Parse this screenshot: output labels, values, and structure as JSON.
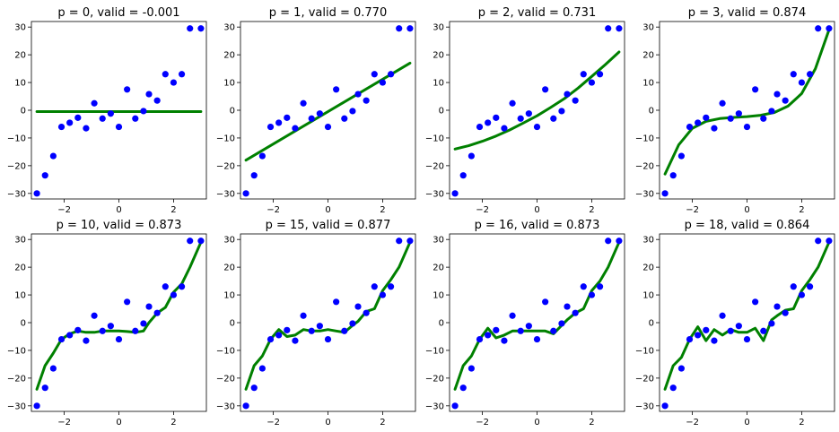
{
  "chart_data": [
    {
      "type": "scatter",
      "title": "p = 0, valid = -0.001",
      "xlabel": "",
      "ylabel": "",
      "xlim": [
        -3.2,
        3.2
      ],
      "ylim": [
        -32,
        32
      ],
      "xticks": [
        -2,
        0,
        2
      ],
      "yticks": [
        -30,
        -20,
        -10,
        0,
        10,
        20,
        30
      ],
      "grid": false,
      "legend": "none",
      "series": [
        {
          "kind": "points",
          "color": "#0000ff",
          "x": [
            -3.0,
            -2.7,
            -2.4,
            -2.1,
            -1.8,
            -1.5,
            -1.2,
            -0.9,
            -0.6,
            -0.3,
            0.0,
            0.3,
            0.6,
            0.9,
            1.1,
            1.4,
            1.7,
            2.0,
            2.3,
            2.6,
            3.0
          ],
          "y": [
            -30.0,
            -23.5,
            -16.5,
            -6.0,
            -4.5,
            -2.7,
            -6.5,
            2.5,
            -3.0,
            -1.2,
            -6.0,
            7.5,
            -3.0,
            -0.3,
            5.8,
            3.5,
            13.0,
            10.0,
            13.0,
            29.5,
            29.5
          ]
        },
        {
          "kind": "fit",
          "color": "#008000",
          "x": [
            -3.0,
            3.0
          ],
          "y": [
            -0.5,
            -0.5
          ]
        }
      ]
    },
    {
      "type": "scatter",
      "title": "p = 1, valid = 0.770",
      "xlabel": "",
      "ylabel": "",
      "xlim": [
        -3.2,
        3.2
      ],
      "ylim": [
        -32,
        32
      ],
      "xticks": [
        -2,
        0,
        2
      ],
      "yticks": [
        -30,
        -20,
        -10,
        0,
        10,
        20,
        30
      ],
      "grid": false,
      "legend": "none",
      "series": [
        {
          "kind": "points",
          "color": "#0000ff",
          "x": [
            -3.0,
            -2.7,
            -2.4,
            -2.1,
            -1.8,
            -1.5,
            -1.2,
            -0.9,
            -0.6,
            -0.3,
            0.0,
            0.3,
            0.6,
            0.9,
            1.1,
            1.4,
            1.7,
            2.0,
            2.3,
            2.6,
            3.0
          ],
          "y": [
            -30.0,
            -23.5,
            -16.5,
            -6.0,
            -4.5,
            -2.7,
            -6.5,
            2.5,
            -3.0,
            -1.2,
            -6.0,
            7.5,
            -3.0,
            -0.3,
            5.8,
            3.5,
            13.0,
            10.0,
            13.0,
            29.5,
            29.5
          ]
        },
        {
          "kind": "fit",
          "color": "#008000",
          "x": [
            -3.0,
            3.0
          ],
          "y": [
            -18.0,
            17.0
          ]
        }
      ]
    },
    {
      "type": "scatter",
      "title": "p = 2, valid = 0.731",
      "xlabel": "",
      "ylabel": "",
      "xlim": [
        -3.2,
        3.2
      ],
      "ylim": [
        -32,
        32
      ],
      "xticks": [
        -2,
        0,
        2
      ],
      "yticks": [
        -30,
        -20,
        -10,
        0,
        10,
        20,
        30
      ],
      "grid": false,
      "legend": "none",
      "series": [
        {
          "kind": "points",
          "color": "#0000ff",
          "x": [
            -3.0,
            -2.7,
            -2.4,
            -2.1,
            -1.8,
            -1.5,
            -1.2,
            -0.9,
            -0.6,
            -0.3,
            0.0,
            0.3,
            0.6,
            0.9,
            1.1,
            1.4,
            1.7,
            2.0,
            2.3,
            2.6,
            3.0
          ],
          "y": [
            -30.0,
            -23.5,
            -16.5,
            -6.0,
            -4.5,
            -2.7,
            -6.5,
            2.5,
            -3.0,
            -1.2,
            -6.0,
            7.5,
            -3.0,
            -0.3,
            5.8,
            3.5,
            13.0,
            10.0,
            13.0,
            29.5,
            29.5
          ]
        },
        {
          "kind": "fit",
          "color": "#008000",
          "x": [
            -3.0,
            -2.5,
            -2.0,
            -1.5,
            -1.0,
            -0.5,
            0.0,
            0.5,
            1.0,
            1.5,
            2.0,
            2.5,
            3.0
          ],
          "y": [
            -14.0,
            -12.8,
            -11.2,
            -9.3,
            -7.1,
            -4.6,
            -2.0,
            1.0,
            4.2,
            8.0,
            12.2,
            16.5,
            21.0
          ]
        }
      ]
    },
    {
      "type": "scatter",
      "title": "p = 3, valid = 0.874",
      "xlabel": "",
      "ylabel": "",
      "xlim": [
        -3.2,
        3.2
      ],
      "ylim": [
        -32,
        32
      ],
      "xticks": [
        -2,
        0,
        2
      ],
      "yticks": [
        -30,
        -20,
        -10,
        0,
        10,
        20,
        30
      ],
      "grid": false,
      "legend": "none",
      "series": [
        {
          "kind": "points",
          "color": "#0000ff",
          "x": [
            -3.0,
            -2.7,
            -2.4,
            -2.1,
            -1.8,
            -1.5,
            -1.2,
            -0.9,
            -0.6,
            -0.3,
            0.0,
            0.3,
            0.6,
            0.9,
            1.1,
            1.4,
            1.7,
            2.0,
            2.3,
            2.6,
            3.0
          ],
          "y": [
            -30.0,
            -23.5,
            -16.5,
            -6.0,
            -4.5,
            -2.7,
            -6.5,
            2.5,
            -3.0,
            -1.2,
            -6.0,
            7.5,
            -3.0,
            -0.3,
            5.8,
            3.5,
            13.0,
            10.0,
            13.0,
            29.5,
            29.5
          ]
        },
        {
          "kind": "fit",
          "color": "#008000",
          "x": [
            -3.0,
            -2.5,
            -2.0,
            -1.5,
            -1.0,
            -0.5,
            0.0,
            0.5,
            1.0,
            1.5,
            2.0,
            2.5,
            3.0
          ],
          "y": [
            -23.0,
            -12.5,
            -6.5,
            -4.0,
            -3.0,
            -2.6,
            -2.3,
            -1.8,
            -0.8,
            1.5,
            6.0,
            15.0,
            29.0
          ]
        }
      ]
    },
    {
      "type": "scatter",
      "title": "p = 10, valid = 0.873",
      "xlabel": "",
      "ylabel": "",
      "xlim": [
        -3.2,
        3.2
      ],
      "ylim": [
        -32,
        32
      ],
      "xticks": [
        -2,
        0,
        2
      ],
      "yticks": [
        -30,
        -20,
        -10,
        0,
        10,
        20,
        30
      ],
      "grid": false,
      "legend": "none",
      "series": [
        {
          "kind": "points",
          "color": "#0000ff",
          "x": [
            -3.0,
            -2.7,
            -2.4,
            -2.1,
            -1.8,
            -1.5,
            -1.2,
            -0.9,
            -0.6,
            -0.3,
            0.0,
            0.3,
            0.6,
            0.9,
            1.1,
            1.4,
            1.7,
            2.0,
            2.3,
            2.6,
            3.0
          ],
          "y": [
            -30.0,
            -23.5,
            -16.5,
            -6.0,
            -4.5,
            -2.7,
            -6.5,
            2.5,
            -3.0,
            -1.2,
            -6.0,
            7.5,
            -3.0,
            -0.3,
            5.8,
            3.5,
            13.0,
            10.0,
            13.0,
            29.5,
            29.5
          ]
        },
        {
          "kind": "fit",
          "color": "#008000",
          "x": [
            -3.0,
            -2.7,
            -2.4,
            -2.1,
            -1.8,
            -1.5,
            -1.2,
            -0.9,
            -0.6,
            -0.3,
            0.0,
            0.3,
            0.6,
            0.9,
            1.1,
            1.4,
            1.7,
            2.0,
            2.3,
            2.6,
            3.0
          ],
          "y": [
            -24.0,
            -15.5,
            -11.0,
            -6.0,
            -4.0,
            -3.0,
            -3.5,
            -3.5,
            -3.0,
            -3.0,
            -3.0,
            -3.2,
            -3.5,
            -3.0,
            0.0,
            3.5,
            5.5,
            11.0,
            14.0,
            20.0,
            29.0
          ]
        }
      ]
    },
    {
      "type": "scatter",
      "title": "p = 15, valid = 0.877",
      "xlabel": "",
      "ylabel": "",
      "xlim": [
        -3.2,
        3.2
      ],
      "ylim": [
        -32,
        32
      ],
      "xticks": [
        -2,
        0,
        2
      ],
      "yticks": [
        -30,
        -20,
        -10,
        0,
        10,
        20,
        30
      ],
      "grid": false,
      "legend": "none",
      "series": [
        {
          "kind": "points",
          "color": "#0000ff",
          "x": [
            -3.0,
            -2.7,
            -2.4,
            -2.1,
            -1.8,
            -1.5,
            -1.2,
            -0.9,
            -0.6,
            -0.3,
            0.0,
            0.3,
            0.6,
            0.9,
            1.1,
            1.4,
            1.7,
            2.0,
            2.3,
            2.6,
            3.0
          ],
          "y": [
            -30.0,
            -23.5,
            -16.5,
            -6.0,
            -4.5,
            -2.7,
            -6.5,
            2.5,
            -3.0,
            -1.2,
            -6.0,
            7.5,
            -3.0,
            -0.3,
            5.8,
            3.5,
            13.0,
            10.0,
            13.0,
            29.5,
            29.5
          ]
        },
        {
          "kind": "fit",
          "color": "#008000",
          "x": [
            -3.0,
            -2.7,
            -2.4,
            -2.1,
            -1.8,
            -1.5,
            -1.2,
            -0.9,
            -0.6,
            -0.3,
            0.0,
            0.3,
            0.6,
            0.9,
            1.1,
            1.4,
            1.7,
            2.0,
            2.3,
            2.6,
            3.0
          ],
          "y": [
            -24.0,
            -15.5,
            -12.0,
            -6.0,
            -2.5,
            -5.0,
            -4.5,
            -2.5,
            -3.0,
            -3.0,
            -2.5,
            -3.0,
            -3.5,
            -1.0,
            0.5,
            4.0,
            5.0,
            11.5,
            15.5,
            20.0,
            29.0
          ]
        }
      ]
    },
    {
      "type": "scatter",
      "title": "p = 16, valid = 0.873",
      "xlabel": "",
      "ylabel": "",
      "xlim": [
        -3.2,
        3.2
      ],
      "ylim": [
        -32,
        32
      ],
      "xticks": [
        -2,
        0,
        2
      ],
      "yticks": [
        -30,
        -20,
        -10,
        0,
        10,
        20,
        30
      ],
      "grid": false,
      "legend": "none",
      "series": [
        {
          "kind": "points",
          "color": "#0000ff",
          "x": [
            -3.0,
            -2.7,
            -2.4,
            -2.1,
            -1.8,
            -1.5,
            -1.2,
            -0.9,
            -0.6,
            -0.3,
            0.0,
            0.3,
            0.6,
            0.9,
            1.1,
            1.4,
            1.7,
            2.0,
            2.3,
            2.6,
            3.0
          ],
          "y": [
            -30.0,
            -23.5,
            -16.5,
            -6.0,
            -4.5,
            -2.7,
            -6.5,
            2.5,
            -3.0,
            -1.2,
            -6.0,
            7.5,
            -3.0,
            -0.3,
            5.8,
            3.5,
            13.0,
            10.0,
            13.0,
            29.5,
            29.5
          ]
        },
        {
          "kind": "fit",
          "color": "#008000",
          "x": [
            -3.0,
            -2.7,
            -2.4,
            -2.1,
            -1.8,
            -1.5,
            -1.2,
            -0.9,
            -0.6,
            -0.3,
            0.0,
            0.3,
            0.6,
            0.9,
            1.1,
            1.4,
            1.7,
            2.0,
            2.3,
            2.6,
            3.0
          ],
          "y": [
            -24.0,
            -15.5,
            -12.0,
            -6.0,
            -2.0,
            -5.5,
            -4.5,
            -3.0,
            -3.0,
            -3.0,
            -3.0,
            -3.0,
            -4.0,
            -1.0,
            1.0,
            3.5,
            5.0,
            11.5,
            15.0,
            20.0,
            29.0
          ]
        }
      ]
    },
    {
      "type": "scatter",
      "title": "p = 18, valid = 0.864",
      "xlabel": "",
      "ylabel": "",
      "xlim": [
        -3.2,
        3.2
      ],
      "ylim": [
        -32,
        32
      ],
      "xticks": [
        -2,
        0,
        2
      ],
      "yticks": [
        -30,
        -20,
        -10,
        0,
        10,
        20,
        30
      ],
      "grid": false,
      "legend": "none",
      "series": [
        {
          "kind": "points",
          "color": "#0000ff",
          "x": [
            -3.0,
            -2.7,
            -2.4,
            -2.1,
            -1.8,
            -1.5,
            -1.2,
            -0.9,
            -0.6,
            -0.3,
            0.0,
            0.3,
            0.6,
            0.9,
            1.1,
            1.4,
            1.7,
            2.0,
            2.3,
            2.6,
            3.0
          ],
          "y": [
            -30.0,
            -23.5,
            -16.5,
            -6.0,
            -4.5,
            -2.7,
            -6.5,
            2.5,
            -3.0,
            -1.2,
            -6.0,
            7.5,
            -3.0,
            -0.3,
            5.8,
            3.5,
            13.0,
            10.0,
            13.0,
            29.5,
            29.5
          ]
        },
        {
          "kind": "fit",
          "color": "#008000",
          "x": [
            -3.0,
            -2.7,
            -2.4,
            -2.1,
            -1.8,
            -1.5,
            -1.2,
            -0.9,
            -0.6,
            -0.3,
            0.0,
            0.3,
            0.6,
            0.9,
            1.1,
            1.4,
            1.7,
            2.0,
            2.3,
            2.6,
            3.0
          ],
          "y": [
            -24.0,
            -15.5,
            -12.5,
            -6.0,
            -1.5,
            -6.5,
            -2.5,
            -4.5,
            -2.5,
            -3.5,
            -3.5,
            -2.0,
            -6.5,
            1.0,
            2.5,
            4.5,
            5.0,
            11.5,
            15.5,
            20.0,
            29.0
          ]
        }
      ]
    }
  ]
}
